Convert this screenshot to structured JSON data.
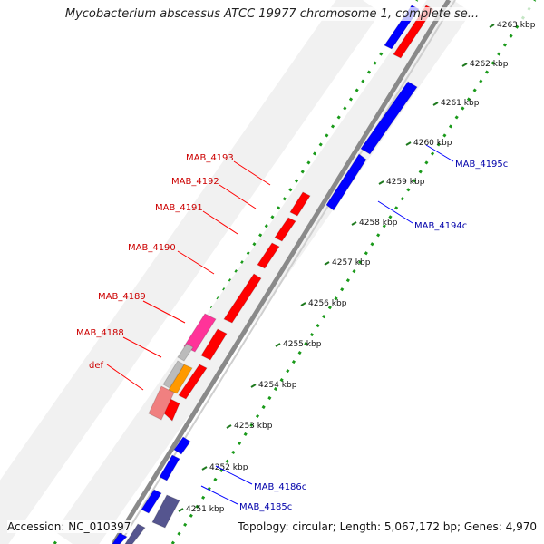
{
  "title": "Mycobacterium abscessus ATCC 19977 chromosome 1, complete se...",
  "footer": {
    "accession": "Accession: NC_010397",
    "summary": "Topology: circular; Length: 5,067,172 bp; Genes: 4,970"
  },
  "colors": {
    "forward": "#ff0000",
    "reverse": "#0000ff",
    "label_forward": "#cc0000",
    "label_reverse": "#0000aa",
    "backbone": "#9a9a9a",
    "kbp_dots": "#22aa22",
    "tick_marks": "#1f7a1f"
  },
  "kbp_ticks": [
    "4251 kbp",
    "4252 kbp",
    "4253 kbp",
    "4254 kbp",
    "4255 kbp",
    "4256 kbp",
    "4257 kbp",
    "4258 kbp",
    "4259 kbp",
    "4260 kbp",
    "4261 kbp",
    "4262 kbp",
    "4263 kbp"
  ],
  "forward_labels": [
    "def",
    "MAB_4188",
    "MAB_4189",
    "MAB_4190",
    "MAB_4191",
    "MAB_4192",
    "MAB_4193"
  ],
  "reverse_labels": [
    "MAB_4185c",
    "MAB_4186c",
    "MAB_4194c",
    "MAB_4195c"
  ]
}
